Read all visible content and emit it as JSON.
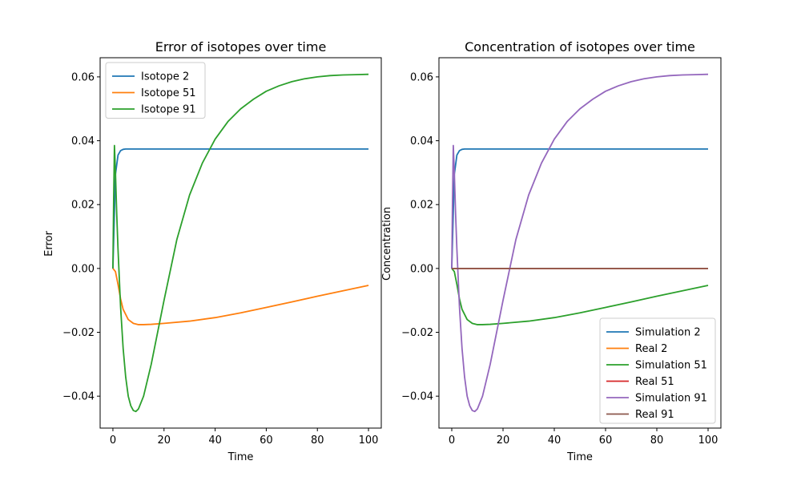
{
  "chart_data": [
    {
      "type": "line",
      "title": "Error of isotopes over time",
      "xlabel": "Time",
      "ylabel": "Error",
      "xlim": [
        -5,
        105
      ],
      "ylim": [
        -0.05,
        0.066
      ],
      "xticks": [
        0,
        20,
        40,
        60,
        80,
        100
      ],
      "yticks": [
        -0.04,
        -0.02,
        0.0,
        0.02,
        0.04,
        0.06
      ],
      "xtick_labels": [
        "0",
        "20",
        "40",
        "60",
        "80",
        "100"
      ],
      "ytick_labels": [
        "−0.04",
        "−0.02",
        "0.00",
        "0.02",
        "0.04",
        "0.06"
      ],
      "grid": false,
      "legend_loc": "upper-left",
      "series": [
        {
          "name": "Isotope 2",
          "color": "#1f77b4",
          "x": [
            0,
            1,
            2,
            3,
            4,
            5,
            10,
            20,
            40,
            60,
            80,
            100
          ],
          "y": [
            0,
            0.0295,
            0.0355,
            0.0369,
            0.0373,
            0.0374,
            0.0374,
            0.0374,
            0.0374,
            0.0374,
            0.0374,
            0.0374
          ]
        },
        {
          "name": "Isotope 51",
          "color": "#ff7f0e",
          "x": [
            0,
            1,
            2,
            3,
            4,
            6,
            8,
            10,
            12,
            15,
            20,
            30,
            40,
            50,
            60,
            70,
            80,
            90,
            100
          ],
          "y": [
            0,
            -0.001,
            -0.005,
            -0.0095,
            -0.0128,
            -0.016,
            -0.0172,
            -0.0176,
            -0.0176,
            -0.0175,
            -0.0172,
            -0.0165,
            -0.0154,
            -0.0139,
            -0.0122,
            -0.0105,
            -0.0087,
            -0.007,
            -0.0053
          ]
        },
        {
          "name": "Isotope 91",
          "color": "#2ca02c",
          "x": [
            0,
            0.3,
            0.6,
            1,
            1.5,
            2,
            3,
            4,
            5,
            6,
            7,
            8,
            9,
            10,
            12,
            15,
            20,
            25,
            30,
            35,
            40,
            45,
            50,
            55,
            60,
            65,
            70,
            75,
            80,
            85,
            90,
            95,
            100
          ],
          "y": [
            0,
            0.022,
            0.0385,
            0.03,
            0.017,
            0.006,
            -0.012,
            -0.025,
            -0.034,
            -0.04,
            -0.043,
            -0.0445,
            -0.0448,
            -0.044,
            -0.04,
            -0.03,
            -0.01,
            0.009,
            0.023,
            0.033,
            0.0405,
            0.046,
            0.05,
            0.053,
            0.0555,
            0.0572,
            0.0585,
            0.0594,
            0.06,
            0.0604,
            0.0606,
            0.0607,
            0.0608
          ]
        }
      ]
    },
    {
      "type": "line",
      "title": "Concentration of isotopes over time",
      "xlabel": "Time",
      "ylabel": "Concentration",
      "xlim": [
        -5,
        105
      ],
      "ylim": [
        -0.05,
        0.066
      ],
      "xticks": [
        0,
        20,
        40,
        60,
        80,
        100
      ],
      "yticks": [
        -0.04,
        -0.02,
        0.0,
        0.02,
        0.04,
        0.06
      ],
      "xtick_labels": [
        "0",
        "20",
        "40",
        "60",
        "80",
        "100"
      ],
      "ytick_labels": [
        "−0.04",
        "−0.02",
        "0.00",
        "0.02",
        "0.04",
        "0.06"
      ],
      "grid": false,
      "legend_loc": "lower-right",
      "series": [
        {
          "name": "Simulation 2",
          "color": "#1f77b4",
          "x": [
            0,
            1,
            2,
            3,
            4,
            5,
            10,
            20,
            40,
            60,
            80,
            100
          ],
          "y": [
            0,
            0.0295,
            0.0355,
            0.0369,
            0.0373,
            0.0374,
            0.0374,
            0.0374,
            0.0374,
            0.0374,
            0.0374,
            0.0374
          ]
        },
        {
          "name": "Real 2",
          "color": "#ff7f0e",
          "x": [
            0,
            100
          ],
          "y": [
            0,
            0
          ]
        },
        {
          "name": "Simulation 51",
          "color": "#2ca02c",
          "x": [
            0,
            1,
            2,
            3,
            4,
            6,
            8,
            10,
            12,
            15,
            20,
            30,
            40,
            50,
            60,
            70,
            80,
            90,
            100
          ],
          "y": [
            0,
            -0.001,
            -0.005,
            -0.0095,
            -0.0128,
            -0.016,
            -0.0172,
            -0.0176,
            -0.0176,
            -0.0175,
            -0.0172,
            -0.0165,
            -0.0154,
            -0.0139,
            -0.0122,
            -0.0105,
            -0.0087,
            -0.007,
            -0.0053
          ]
        },
        {
          "name": "Real 51",
          "color": "#d62728",
          "x": [
            0,
            100
          ],
          "y": [
            0,
            0
          ]
        },
        {
          "name": "Simulation 91",
          "color": "#9467bd",
          "x": [
            0,
            0.3,
            0.6,
            1,
            1.5,
            2,
            3,
            4,
            5,
            6,
            7,
            8,
            9,
            10,
            12,
            15,
            20,
            25,
            30,
            35,
            40,
            45,
            50,
            55,
            60,
            65,
            70,
            75,
            80,
            85,
            90,
            95,
            100
          ],
          "y": [
            0,
            0.022,
            0.0385,
            0.03,
            0.017,
            0.006,
            -0.012,
            -0.025,
            -0.034,
            -0.04,
            -0.043,
            -0.0445,
            -0.0448,
            -0.044,
            -0.04,
            -0.03,
            -0.01,
            0.009,
            0.023,
            0.033,
            0.0405,
            0.046,
            0.05,
            0.053,
            0.0555,
            0.0572,
            0.0585,
            0.0594,
            0.06,
            0.0604,
            0.0606,
            0.0607,
            0.0608
          ]
        },
        {
          "name": "Real 91",
          "color": "#8c564b",
          "x": [
            0,
            100
          ],
          "y": [
            0,
            0
          ]
        }
      ]
    }
  ]
}
